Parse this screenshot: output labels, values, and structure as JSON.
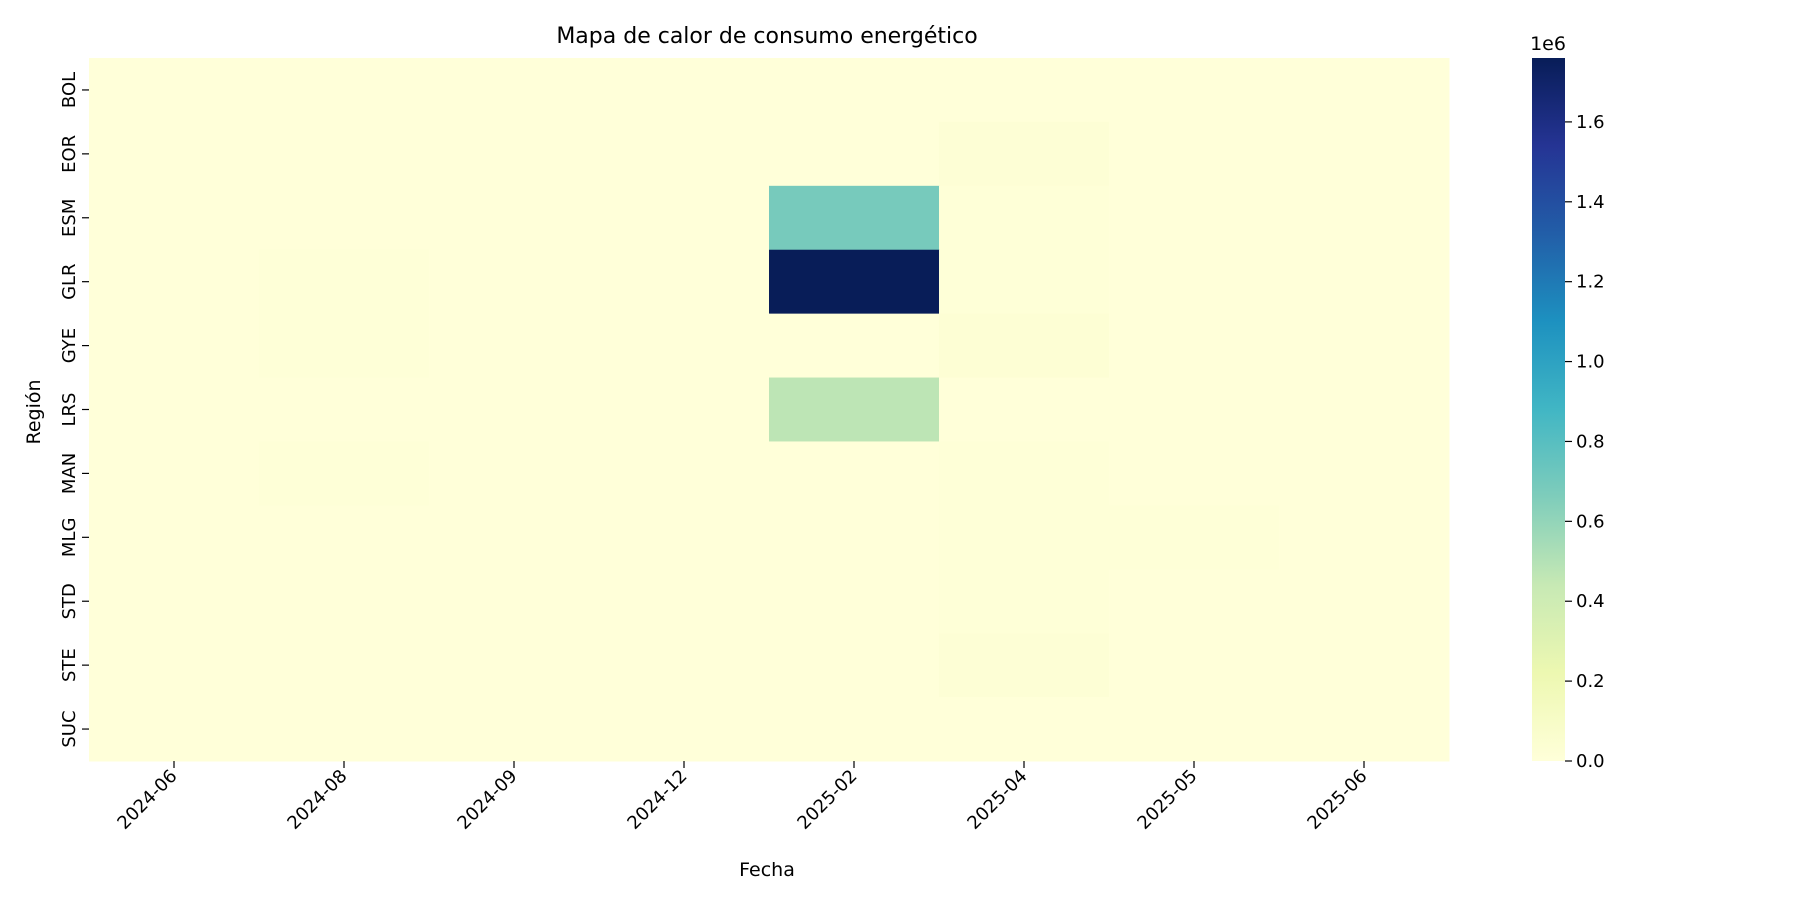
{
  "chart_data": {
    "type": "heatmap",
    "title": "Mapa de calor de consumo energético",
    "xlabel": "Fecha",
    "ylabel": "Región",
    "x_categories": [
      "2024-06",
      "2024-08",
      "2024-09",
      "2024-12",
      "2025-02",
      "2025-04",
      "2025-05",
      "2025-06"
    ],
    "y_categories": [
      "BOL",
      "EOR",
      "ESM",
      "GLR",
      "GYE",
      "LRS",
      "MAN",
      "MLG",
      "STD",
      "STE",
      "SUC"
    ],
    "values": [
      [
        0,
        0,
        0,
        0,
        0,
        0,
        0,
        0
      ],
      [
        0,
        0,
        0,
        0,
        0,
        20000,
        0,
        0
      ],
      [
        0,
        0,
        0,
        0,
        690000,
        10000,
        0,
        0
      ],
      [
        0,
        10000,
        0,
        0,
        1760000,
        10000,
        0,
        0
      ],
      [
        0,
        10000,
        0,
        0,
        0,
        30000,
        0,
        0
      ],
      [
        0,
        0,
        0,
        0,
        470000,
        0,
        0,
        0
      ],
      [
        0,
        10000,
        0,
        0,
        0,
        10000,
        0,
        0
      ],
      [
        0,
        0,
        0,
        0,
        0,
        10000,
        10000,
        0
      ],
      [
        0,
        0,
        0,
        0,
        0,
        10000,
        0,
        0
      ],
      [
        0,
        0,
        0,
        0,
        0,
        20000,
        0,
        0
      ],
      [
        0,
        0,
        0,
        0,
        0,
        0,
        0,
        0
      ]
    ],
    "vmin": 0,
    "vmax": 1760000,
    "colormap": "YlGnBu",
    "colorbar": {
      "ticks": [
        0,
        200000,
        400000,
        600000,
        800000,
        1000000,
        1200000,
        1400000,
        1600000
      ],
      "tick_labels": [
        "0.0",
        "0.2",
        "0.4",
        "0.6",
        "0.8",
        "1.0",
        "1.2",
        "1.4",
        "1.6"
      ],
      "offset_label": "1e6"
    }
  }
}
